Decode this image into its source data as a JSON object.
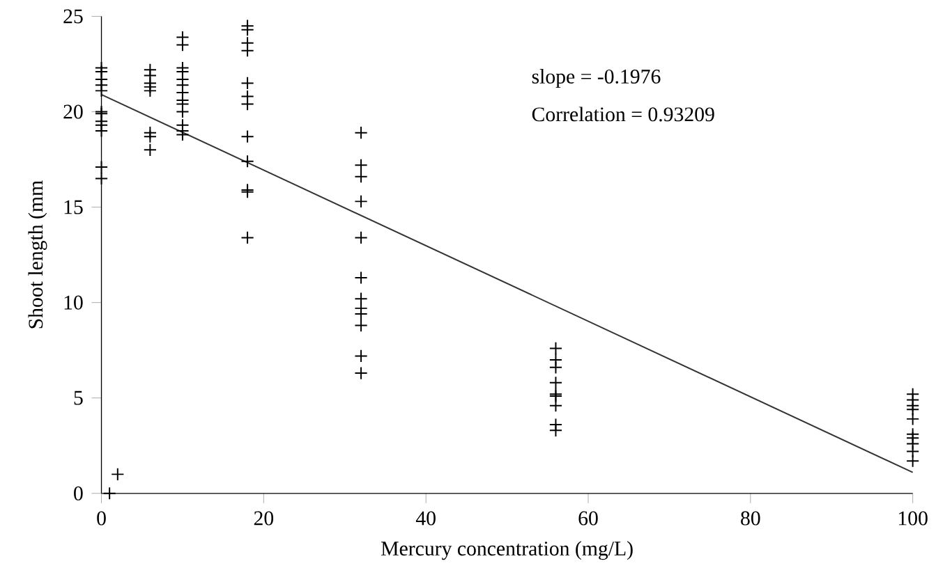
{
  "chart_data": {
    "type": "scatter",
    "xlabel": "Mercury concentration (mg/L)",
    "ylabel": "Shoot length (mm",
    "xlim": [
      0,
      100
    ],
    "ylim": [
      0,
      25
    ],
    "xticks": [
      0,
      20,
      40,
      60,
      80,
      100
    ],
    "yticks": [
      0,
      5,
      10,
      15,
      20,
      25
    ],
    "marker": "cross",
    "annotations": [
      "slope = -0.1976",
      "Correlation = 0.93209"
    ],
    "series": [
      {
        "color": "#000000",
        "x": [
          0,
          0,
          0,
          0,
          0,
          0,
          0,
          0,
          0,
          0,
          0,
          0,
          6,
          6,
          6,
          6,
          6,
          6,
          6,
          6,
          10,
          10,
          10,
          10,
          10,
          10,
          10,
          10,
          10,
          10,
          10,
          10,
          10,
          18,
          18,
          18,
          18,
          18,
          18,
          18,
          18,
          18,
          18,
          18,
          18,
          32,
          32,
          32,
          32,
          32,
          32,
          32,
          32,
          32,
          32,
          32,
          32,
          56,
          56,
          56,
          56,
          56,
          56,
          56,
          56,
          56,
          100,
          100,
          100,
          100,
          100,
          100,
          100,
          100,
          100,
          100
        ],
        "values": [
          22.3,
          22.1,
          21.7,
          21.4,
          21.1,
          20.0,
          19.9,
          19.5,
          19.3,
          19.0,
          17.1,
          16.5,
          22.2,
          21.9,
          21.5,
          21.3,
          21.1,
          18.9,
          18.7,
          18.0,
          23.9,
          23.5,
          22.3,
          22.1,
          21.7,
          21.4,
          21.0,
          20.6,
          20.4,
          20.0,
          19.3,
          19.0,
          18.8,
          24.5,
          24.3,
          23.6,
          23.2,
          21.5,
          20.8,
          20.4,
          18.7,
          17.4,
          15.9,
          15.8,
          13.4,
          18.9,
          17.2,
          16.6,
          15.3,
          13.4,
          11.3,
          10.2,
          9.7,
          9.4,
          8.8,
          7.2,
          6.3,
          7.6,
          7.0,
          6.6,
          5.8,
          5.2,
          5.1,
          4.6,
          3.6,
          3.3,
          5.2,
          4.9,
          4.6,
          4.4,
          3.9,
          3.1,
          2.9,
          2.6,
          2.2,
          1.7
        ]
      },
      {
        "color": "#000000",
        "x": [
          1,
          2
        ],
        "values": [
          0,
          1
        ]
      },
      {
        "type": "line",
        "color": "#333333",
        "marker": "none",
        "line_style": "solid",
        "x": [
          0,
          100
        ],
        "values": [
          20.9,
          1.1
        ]
      }
    ]
  }
}
